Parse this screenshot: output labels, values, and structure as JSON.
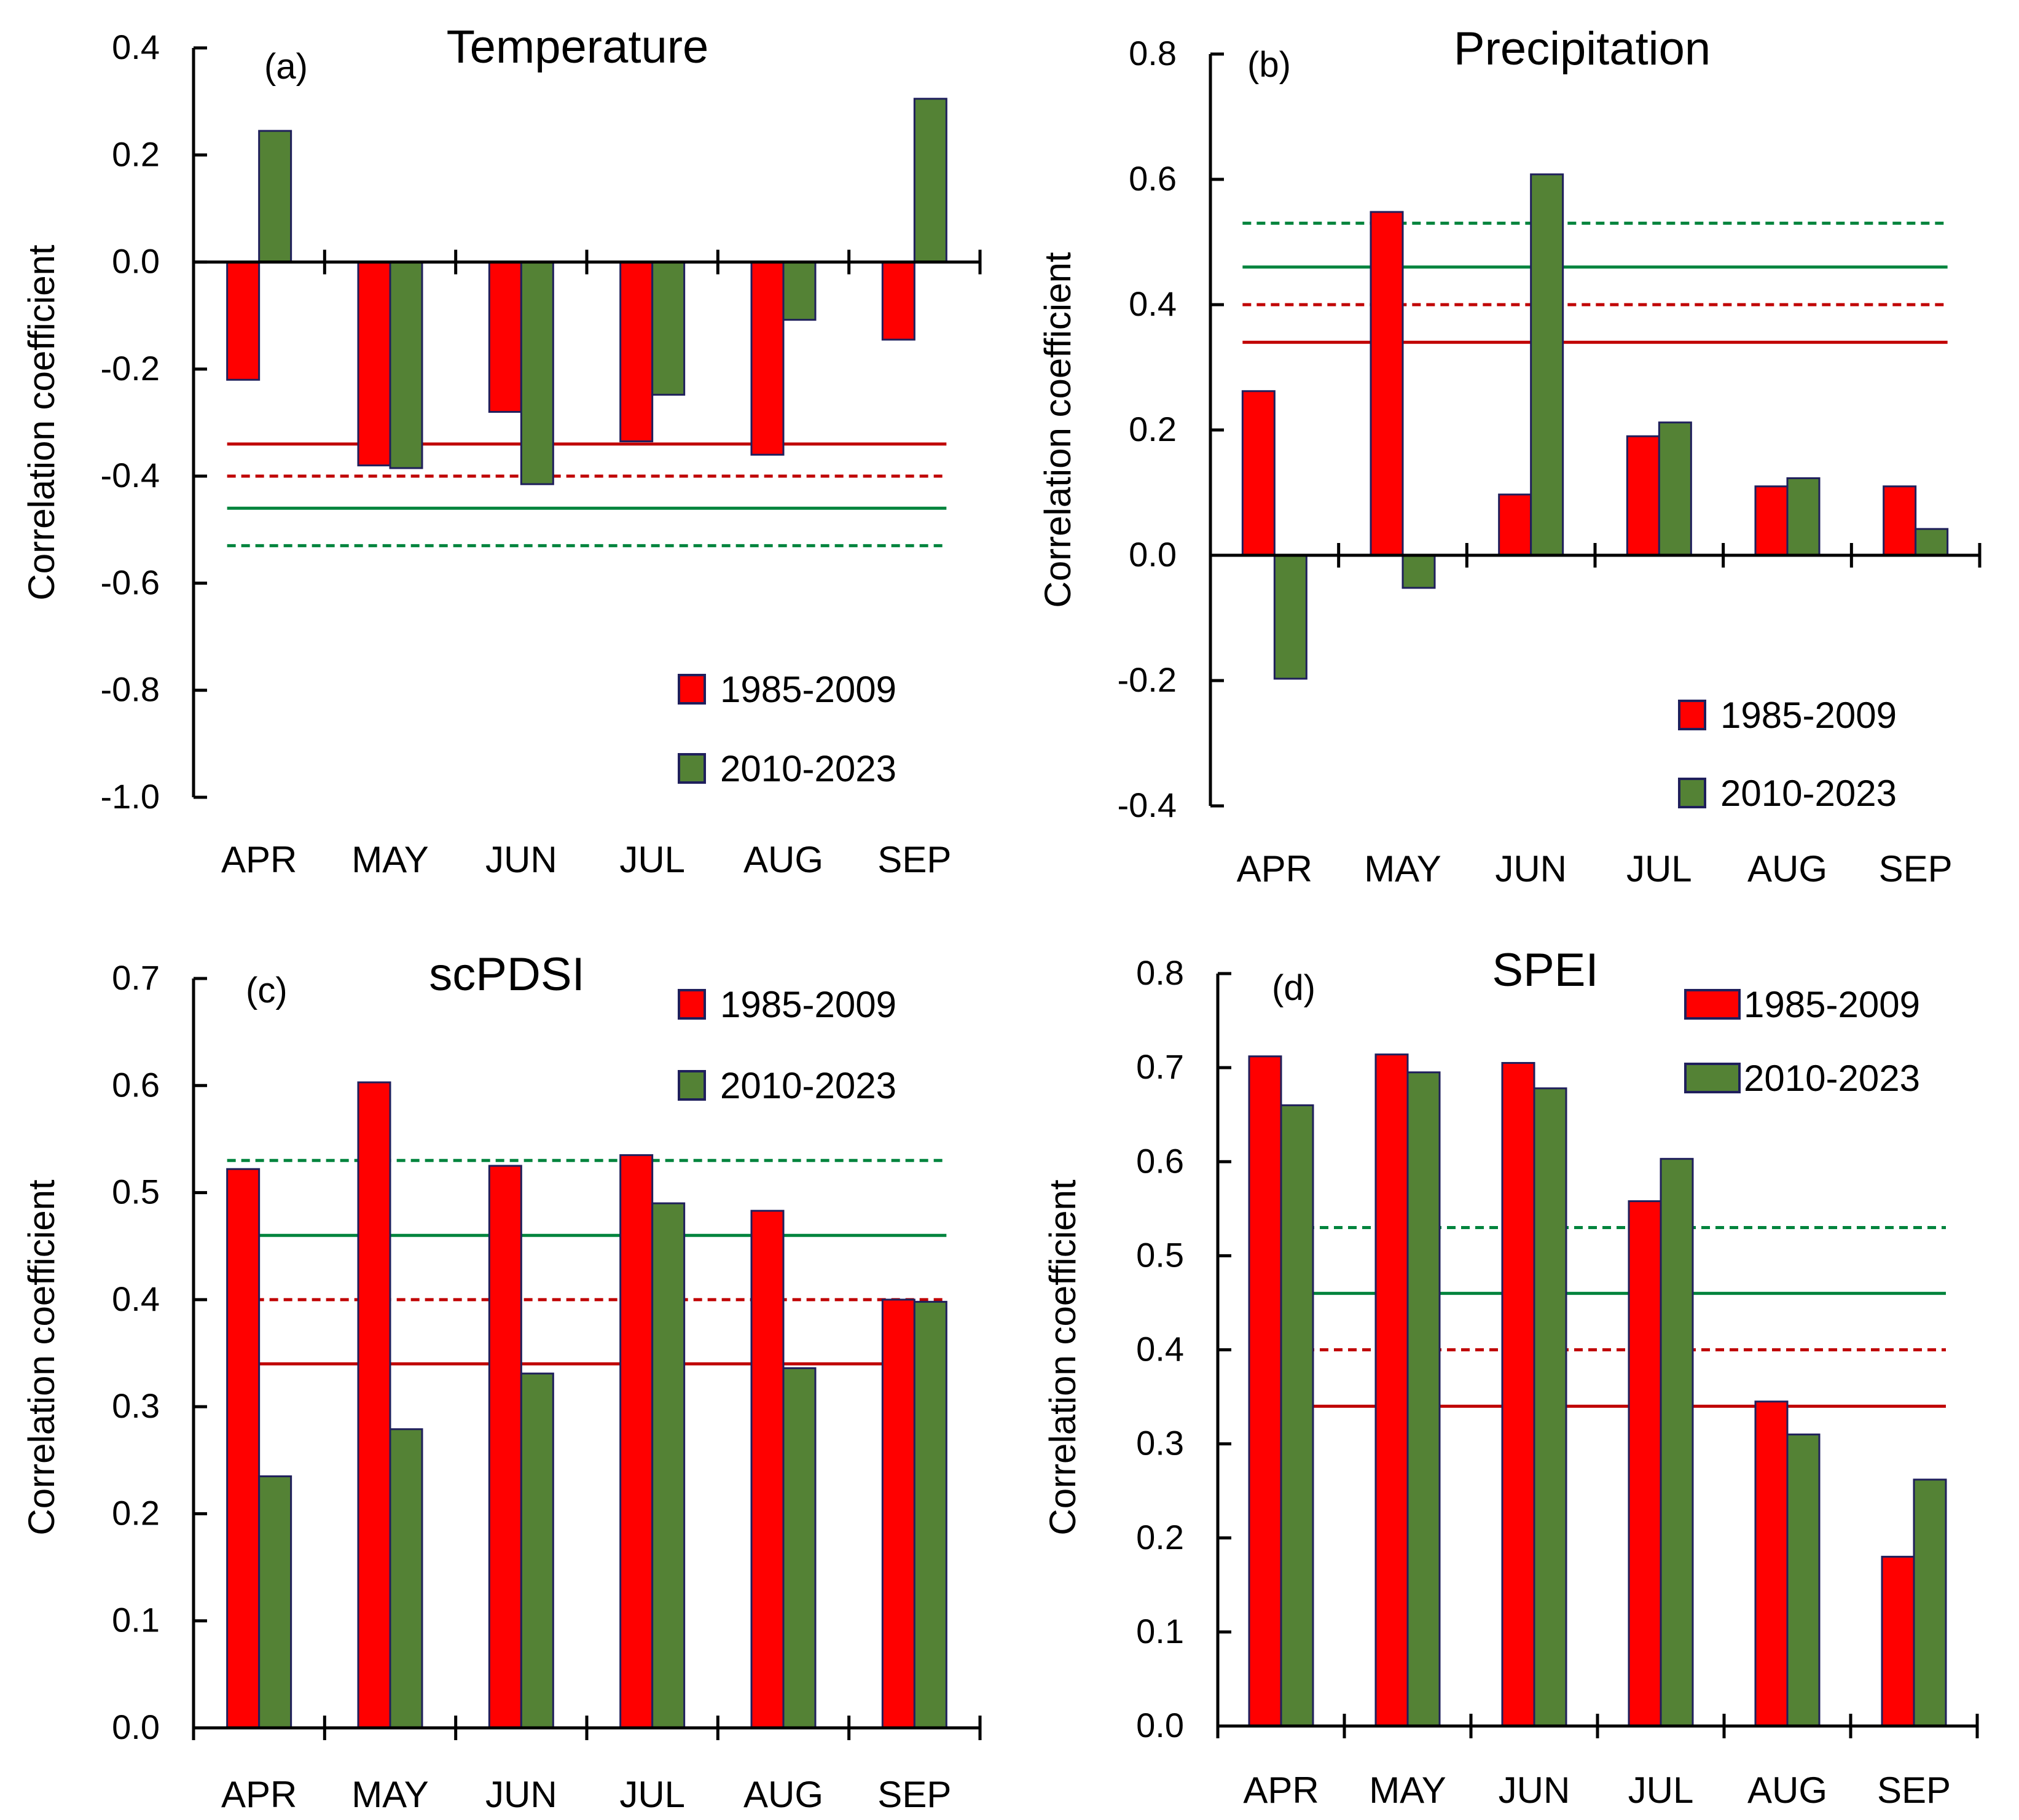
{
  "figure": {
    "ylabel": "Correlation coefficient",
    "categories": [
      "APR",
      "MAY",
      "JUN",
      "JUL",
      "AUG",
      "SEP"
    ]
  },
  "colors": {
    "series_1985_2009": "#ff0000",
    "series_2010_2023": "#548235",
    "bar_outline": "#1f1f5c",
    "threshold_red": "#c00000",
    "threshold_green": "#00843d",
    "axis": "#000000"
  },
  "chart_data": [
    {
      "panel": "(a)",
      "title": "Temperature",
      "type": "bar",
      "ylabel": "Correlation coefficient",
      "categories": [
        "APR",
        "MAY",
        "JUN",
        "JUL",
        "AUG",
        "SEP"
      ],
      "ylim": [
        -1.0,
        0.4
      ],
      "yticks": [
        "0.4",
        "0.2",
        "0.0",
        "-0.2",
        "-0.4",
        "-0.6",
        "-0.8",
        "-1.0"
      ],
      "ytick_values": [
        0.4,
        0.2,
        0.0,
        -0.2,
        -0.4,
        -0.6,
        -0.8,
        -1.0
      ],
      "series": [
        {
          "name": "1985-2009",
          "values": [
            -0.22,
            -0.38,
            -0.28,
            -0.335,
            -0.36,
            -0.145
          ]
        },
        {
          "name": "2010-2023",
          "values": [
            0.245,
            -0.385,
            -0.415,
            -0.248,
            -0.108,
            0.305
          ]
        }
      ],
      "thresholds": [
        {
          "value": -0.34,
          "color": "red",
          "style": "solid"
        },
        {
          "value": -0.4,
          "color": "red",
          "style": "dashed"
        },
        {
          "value": -0.46,
          "color": "green",
          "style": "solid"
        },
        {
          "value": -0.53,
          "color": "green",
          "style": "dashed"
        }
      ],
      "legend": [
        "1985-2009",
        "2010-2023"
      ],
      "legend_position": "bottom-right"
    },
    {
      "panel": "(b)",
      "title": "Precipitation",
      "type": "bar",
      "ylabel": "Correlation coefficient",
      "categories": [
        "APR",
        "MAY",
        "JUN",
        "JUL",
        "AUG",
        "SEP"
      ],
      "ylim": [
        -0.4,
        0.8
      ],
      "yticks": [
        "0.8",
        "0.6",
        "0.4",
        "0.2",
        "0.0",
        "-0.2",
        "-0.4"
      ],
      "ytick_values": [
        0.8,
        0.6,
        0.4,
        0.2,
        0.0,
        -0.2,
        -0.4
      ],
      "series": [
        {
          "name": "1985-2009",
          "values": [
            0.262,
            0.548,
            0.097,
            0.19,
            0.11,
            0.11
          ]
        },
        {
          "name": "2010-2023",
          "values": [
            -0.197,
            -0.052,
            0.608,
            0.212,
            0.123,
            0.042
          ]
        }
      ],
      "thresholds": [
        {
          "value": 0.53,
          "color": "green",
          "style": "dashed"
        },
        {
          "value": 0.46,
          "color": "green",
          "style": "solid"
        },
        {
          "value": 0.4,
          "color": "red",
          "style": "dashed"
        },
        {
          "value": 0.34,
          "color": "red",
          "style": "solid"
        }
      ],
      "legend": [
        "1985-2009",
        "2010-2023"
      ],
      "legend_position": "bottom-right"
    },
    {
      "panel": "(c)",
      "title": "scPDSI",
      "type": "bar",
      "ylabel": "Correlation coefficient",
      "categories": [
        "APR",
        "MAY",
        "JUN",
        "JUL",
        "AUG",
        "SEP"
      ],
      "ylim": [
        0.0,
        0.7
      ],
      "yticks": [
        "0.7",
        "0.6",
        "0.5",
        "0.4",
        "0.3",
        "0.2",
        "0.1",
        "0.0"
      ],
      "ytick_values": [
        0.7,
        0.6,
        0.5,
        0.4,
        0.3,
        0.2,
        0.1,
        0.0
      ],
      "series": [
        {
          "name": "1985-2009",
          "values": [
            0.522,
            0.603,
            0.525,
            0.535,
            0.483,
            0.4
          ]
        },
        {
          "name": "2010-2023",
          "values": [
            0.235,
            0.279,
            0.331,
            0.49,
            0.336,
            0.398
          ]
        }
      ],
      "thresholds": [
        {
          "value": 0.53,
          "color": "green",
          "style": "dashed"
        },
        {
          "value": 0.46,
          "color": "green",
          "style": "solid"
        },
        {
          "value": 0.4,
          "color": "red",
          "style": "dashed"
        },
        {
          "value": 0.34,
          "color": "red",
          "style": "solid"
        }
      ],
      "legend": [
        "1985-2009",
        "2010-2023"
      ],
      "legend_position": "top-right"
    },
    {
      "panel": "(d)",
      "title": "SPEI",
      "type": "bar",
      "ylabel": "Correlation coefficient",
      "categories": [
        "APR",
        "MAY",
        "JUN",
        "JUL",
        "AUG",
        "SEP"
      ],
      "ylim": [
        0.0,
        0.8
      ],
      "yticks": [
        "0.8",
        "0.7",
        "0.6",
        "0.5",
        "0.4",
        "0.3",
        "0.2",
        "0.1",
        "0.0"
      ],
      "ytick_values": [
        0.8,
        0.7,
        0.6,
        0.5,
        0.4,
        0.3,
        0.2,
        0.1,
        0.0
      ],
      "series": [
        {
          "name": "1985-2009",
          "values": [
            0.712,
            0.714,
            0.705,
            0.558,
            0.345,
            0.18
          ]
        },
        {
          "name": "2010-2023",
          "values": [
            0.66,
            0.695,
            0.678,
            0.603,
            0.31,
            0.262
          ]
        }
      ],
      "thresholds": [
        {
          "value": 0.53,
          "color": "green",
          "style": "dashed"
        },
        {
          "value": 0.46,
          "color": "green",
          "style": "solid"
        },
        {
          "value": 0.4,
          "color": "red",
          "style": "dashed"
        },
        {
          "value": 0.34,
          "color": "red",
          "style": "solid"
        }
      ],
      "legend": [
        "1985-2009",
        "2010-2023"
      ],
      "legend_position": "top-right"
    }
  ]
}
